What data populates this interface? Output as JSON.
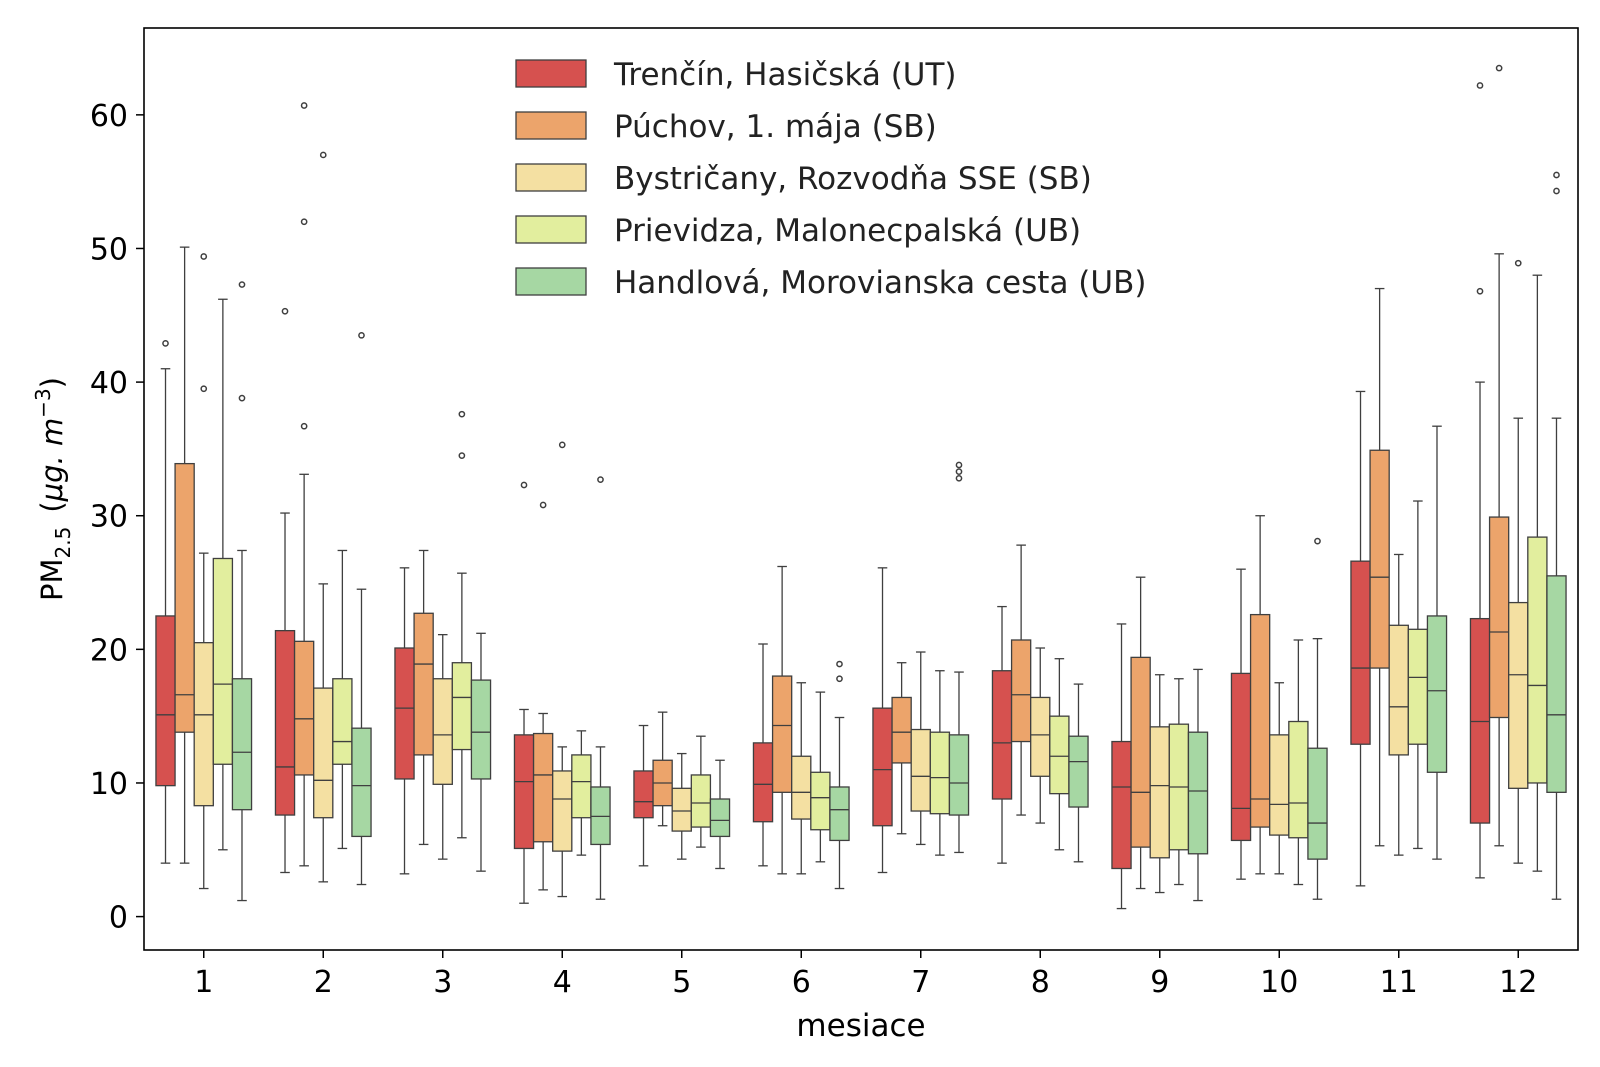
{
  "chart_data": {
    "type": "boxplot",
    "title": "",
    "xlabel": "mesiace",
    "ylabel": {
      "base": "PM",
      "subscript": "2.5",
      "unit_prefix": "(",
      "unit_main": "μg. m",
      "unit_superscript": "−3",
      "unit_suffix": ")"
    },
    "ylim": [
      -2.5,
      66.5
    ],
    "yticks": [
      0,
      10,
      20,
      30,
      40,
      50,
      60
    ],
    "categories": [
      "1",
      "2",
      "3",
      "4",
      "5",
      "6",
      "7",
      "8",
      "9",
      "10",
      "11",
      "12"
    ],
    "grid": false,
    "legend_position": "top-center",
    "series": [
      {
        "name": "Trenčín, Hasičská  (UT)",
        "color": "#d6514f",
        "boxes": [
          {
            "low": 4.0,
            "q1": 9.8,
            "median": 15.1,
            "q3": 22.5,
            "high": 41.0,
            "outliers": [
              42.9
            ]
          },
          {
            "low": 3.3,
            "q1": 7.6,
            "median": 11.2,
            "q3": 21.4,
            "high": 30.2,
            "outliers": [
              45.3
            ]
          },
          {
            "low": 3.2,
            "q1": 10.3,
            "median": 15.6,
            "q3": 20.1,
            "high": 26.1,
            "outliers": []
          },
          {
            "low": 1.0,
            "q1": 5.1,
            "median": 10.1,
            "q3": 13.6,
            "high": 15.5,
            "outliers": [
              32.3
            ]
          },
          {
            "low": 3.8,
            "q1": 7.4,
            "median": 8.6,
            "q3": 10.9,
            "high": 14.3,
            "outliers": []
          },
          {
            "low": 3.8,
            "q1": 7.1,
            "median": 9.9,
            "q3": 13.0,
            "high": 20.4,
            "outliers": []
          },
          {
            "low": 3.3,
            "q1": 6.8,
            "median": 11.0,
            "q3": 15.6,
            "high": 26.1,
            "outliers": []
          },
          {
            "low": 4.0,
            "q1": 8.8,
            "median": 13.0,
            "q3": 18.4,
            "high": 23.2,
            "outliers": []
          },
          {
            "low": 0.6,
            "q1": 3.6,
            "median": 9.7,
            "q3": 13.1,
            "high": 21.9,
            "outliers": []
          },
          {
            "low": 2.8,
            "q1": 5.7,
            "median": 8.1,
            "q3": 18.2,
            "high": 26.0,
            "outliers": []
          },
          {
            "low": 2.3,
            "q1": 12.9,
            "median": 18.6,
            "q3": 26.6,
            "high": 39.3,
            "outliers": []
          },
          {
            "low": 2.9,
            "q1": 7.0,
            "median": 14.6,
            "q3": 22.3,
            "high": 40.0,
            "outliers": [
              46.8,
              62.2
            ]
          }
        ]
      },
      {
        "name": "Púchov, 1. mája (SB)",
        "color": "#eca46b",
        "boxes": [
          {
            "low": 4.0,
            "q1": 13.8,
            "median": 16.6,
            "q3": 33.9,
            "high": 50.1,
            "outliers": []
          },
          {
            "low": 3.8,
            "q1": 10.6,
            "median": 14.8,
            "q3": 20.6,
            "high": 33.1,
            "outliers": [
              36.7,
              52.0,
              60.7
            ]
          },
          {
            "low": 5.4,
            "q1": 12.1,
            "median": 18.9,
            "q3": 22.7,
            "high": 27.4,
            "outliers": []
          },
          {
            "low": 2.0,
            "q1": 5.6,
            "median": 10.6,
            "q3": 13.7,
            "high": 15.2,
            "outliers": [
              30.8
            ]
          },
          {
            "low": 6.8,
            "q1": 8.3,
            "median": 10.0,
            "q3": 11.7,
            "high": 15.3,
            "outliers": []
          },
          {
            "low": 3.2,
            "q1": 9.3,
            "median": 14.3,
            "q3": 18.0,
            "high": 26.2,
            "outliers": []
          },
          {
            "low": 6.2,
            "q1": 11.5,
            "median": 13.8,
            "q3": 16.4,
            "high": 19.0,
            "outliers": []
          },
          {
            "low": 7.6,
            "q1": 13.1,
            "median": 16.6,
            "q3": 20.7,
            "high": 27.8,
            "outliers": []
          },
          {
            "low": 2.1,
            "q1": 5.2,
            "median": 9.3,
            "q3": 19.4,
            "high": 25.4,
            "outliers": []
          },
          {
            "low": 3.2,
            "q1": 6.7,
            "median": 8.8,
            "q3": 22.6,
            "high": 30.0,
            "outliers": []
          },
          {
            "low": 5.3,
            "q1": 18.6,
            "median": 25.4,
            "q3": 34.9,
            "high": 47.0,
            "outliers": []
          },
          {
            "low": 5.3,
            "q1": 14.9,
            "median": 21.3,
            "q3": 29.9,
            "high": 49.6,
            "outliers": [
              63.5
            ]
          }
        ]
      },
      {
        "name": "Bystričany, Rozvodňa SSE (SB)",
        "color": "#f4e0a2",
        "boxes": [
          {
            "low": 2.1,
            "q1": 8.3,
            "median": 15.1,
            "q3": 20.5,
            "high": 27.2,
            "outliers": [
              39.5,
              49.4
            ]
          },
          {
            "low": 2.6,
            "q1": 7.4,
            "median": 10.2,
            "q3": 17.1,
            "high": 24.9,
            "outliers": [
              57.0
            ]
          },
          {
            "low": 4.3,
            "q1": 9.9,
            "median": 13.6,
            "q3": 17.8,
            "high": 21.1,
            "outliers": []
          },
          {
            "low": 1.5,
            "q1": 4.9,
            "median": 8.8,
            "q3": 10.9,
            "high": 12.7,
            "outliers": [
              35.3
            ]
          },
          {
            "low": 4.3,
            "q1": 6.4,
            "median": 7.9,
            "q3": 9.6,
            "high": 12.2,
            "outliers": []
          },
          {
            "low": 3.2,
            "q1": 7.3,
            "median": 9.3,
            "q3": 12.0,
            "high": 17.5,
            "outliers": []
          },
          {
            "low": 5.4,
            "q1": 7.9,
            "median": 10.5,
            "q3": 14.0,
            "high": 19.8,
            "outliers": []
          },
          {
            "low": 7.0,
            "q1": 10.5,
            "median": 13.6,
            "q3": 16.4,
            "high": 20.1,
            "outliers": []
          },
          {
            "low": 1.8,
            "q1": 4.4,
            "median": 9.8,
            "q3": 14.2,
            "high": 18.1,
            "outliers": []
          },
          {
            "low": 3.2,
            "q1": 6.1,
            "median": 8.4,
            "q3": 13.6,
            "high": 17.5,
            "outliers": []
          },
          {
            "low": 4.6,
            "q1": 12.1,
            "median": 15.7,
            "q3": 21.8,
            "high": 27.1,
            "outliers": []
          },
          {
            "low": 4.0,
            "q1": 9.6,
            "median": 18.1,
            "q3": 23.5,
            "high": 37.3,
            "outliers": [
              48.9
            ]
          }
        ]
      },
      {
        "name": "Prievidza, Malonecpalská (UB)",
        "color": "#e2ee9e",
        "boxes": [
          {
            "low": 5.0,
            "q1": 11.4,
            "median": 17.4,
            "q3": 26.8,
            "high": 46.2,
            "outliers": []
          },
          {
            "low": 5.1,
            "q1": 11.4,
            "median": 13.1,
            "q3": 17.8,
            "high": 27.4,
            "outliers": []
          },
          {
            "low": 5.9,
            "q1": 12.5,
            "median": 16.4,
            "q3": 19.0,
            "high": 25.7,
            "outliers": [
              34.5,
              37.6
            ]
          },
          {
            "low": 4.6,
            "q1": 7.4,
            "median": 10.1,
            "q3": 12.1,
            "high": 13.9,
            "outliers": []
          },
          {
            "low": 5.2,
            "q1": 6.7,
            "median": 8.5,
            "q3": 10.6,
            "high": 13.5,
            "outliers": []
          },
          {
            "low": 4.1,
            "q1": 6.5,
            "median": 8.9,
            "q3": 10.8,
            "high": 16.8,
            "outliers": []
          },
          {
            "low": 4.6,
            "q1": 7.7,
            "median": 10.4,
            "q3": 13.8,
            "high": 18.4,
            "outliers": []
          },
          {
            "low": 5.0,
            "q1": 9.2,
            "median": 12.0,
            "q3": 15.0,
            "high": 19.3,
            "outliers": []
          },
          {
            "low": 2.4,
            "q1": 5.0,
            "median": 9.7,
            "q3": 14.4,
            "high": 17.8,
            "outliers": []
          },
          {
            "low": 2.4,
            "q1": 5.9,
            "median": 8.5,
            "q3": 14.6,
            "high": 20.7,
            "outliers": []
          },
          {
            "low": 5.1,
            "q1": 12.9,
            "median": 17.9,
            "q3": 21.5,
            "high": 31.1,
            "outliers": []
          },
          {
            "low": 3.4,
            "q1": 10.0,
            "median": 17.3,
            "q3": 28.4,
            "high": 48.0,
            "outliers": []
          }
        ]
      },
      {
        "name": "Handlová, Morovianska cesta (UB)",
        "color": "#a6d7a3",
        "boxes": [
          {
            "low": 1.2,
            "q1": 8.0,
            "median": 12.3,
            "q3": 17.8,
            "high": 27.4,
            "outliers": [
              38.8,
              47.3
            ]
          },
          {
            "low": 2.4,
            "q1": 6.0,
            "median": 9.8,
            "q3": 14.1,
            "high": 24.5,
            "outliers": [
              43.5
            ]
          },
          {
            "low": 3.4,
            "q1": 10.3,
            "median": 13.8,
            "q3": 17.7,
            "high": 21.2,
            "outliers": []
          },
          {
            "low": 1.3,
            "q1": 5.4,
            "median": 7.5,
            "q3": 9.7,
            "high": 12.7,
            "outliers": [
              32.7
            ]
          },
          {
            "low": 3.6,
            "q1": 6.0,
            "median": 7.2,
            "q3": 8.8,
            "high": 11.7,
            "outliers": []
          },
          {
            "low": 2.1,
            "q1": 5.7,
            "median": 8.0,
            "q3": 9.7,
            "high": 14.9,
            "outliers": [
              17.8,
              18.9
            ]
          },
          {
            "low": 4.8,
            "q1": 7.6,
            "median": 10.0,
            "q3": 13.6,
            "high": 18.3,
            "outliers": [
              32.8,
              33.3,
              33.8
            ]
          },
          {
            "low": 4.1,
            "q1": 8.2,
            "median": 11.6,
            "q3": 13.5,
            "high": 17.4,
            "outliers": []
          },
          {
            "low": 1.2,
            "q1": 4.7,
            "median": 9.4,
            "q3": 13.8,
            "high": 18.5,
            "outliers": []
          },
          {
            "low": 1.3,
            "q1": 4.3,
            "median": 7.0,
            "q3": 12.6,
            "high": 20.8,
            "outliers": [
              28.1
            ]
          },
          {
            "low": 4.3,
            "q1": 10.8,
            "median": 16.9,
            "q3": 22.5,
            "high": 36.7,
            "outliers": []
          },
          {
            "low": 1.3,
            "q1": 9.3,
            "median": 15.1,
            "q3": 25.5,
            "high": 37.3,
            "outliers": [
              54.3,
              55.5
            ]
          }
        ]
      }
    ]
  }
}
